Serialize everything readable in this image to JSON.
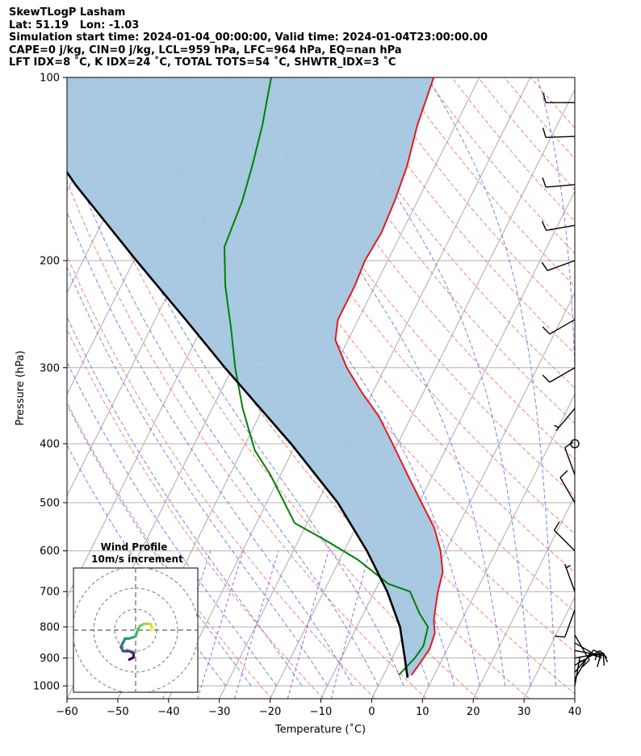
{
  "header": {
    "line1": "SkewTLogP Lasham",
    "line2": "Lat: 51.19   Lon: -1.03",
    "line3": "Simulation start time: 2024-01-04_00:00:00, Valid time: 2024-01-04T23:00:00.00",
    "line4": "CAPE=0 j/kg, CIN=0 j/kg, LCL=959 hPa, LFC=964 hPa, EQ=nan hPa",
    "line5": "LFT IDX=8 ˚C, K IDX=24 ˚C, TOTAL TOTS=54 ˚C, SHWTR_IDX=3 ˚C"
  },
  "chart_data": {
    "type": "skewt-logp",
    "xlabel": "Temperature (˚C)",
    "ylabel": "Pressure (hPa)",
    "xlim": [
      -60,
      40
    ],
    "ylim": [
      1050,
      100
    ],
    "y_log": true,
    "x_ticks": [
      "−60",
      "−50",
      "−40",
      "−30",
      "−20",
      "−10",
      "0",
      "10",
      "20",
      "30",
      "40"
    ],
    "x_tick_values": [
      -60,
      -50,
      -40,
      -30,
      -20,
      -10,
      0,
      10,
      20,
      30,
      40
    ],
    "y_ticks": [
      "100",
      "200",
      "300",
      "400",
      "500",
      "600",
      "700",
      "800",
      "900",
      "1000"
    ],
    "y_tick_values": [
      100,
      200,
      300,
      400,
      500,
      600,
      700,
      800,
      900,
      1000
    ],
    "grid": true,
    "colors": {
      "temperature": "#e31a1c",
      "dewpoint": "#008000",
      "parcel": "#000000",
      "cape_fill": "#a3c6df",
      "dry_adiabat": "#f06b6b",
      "moist_adiabat": "#5a6df0",
      "isotherm": "#aaaaaa",
      "mixing_ratio": "#9b51c9",
      "barb": "#000000"
    },
    "temperature": [
      {
        "p": 960,
        "t": 5.5
      },
      {
        "p": 920,
        "t": 6.0
      },
      {
        "p": 870,
        "t": 6.5
      },
      {
        "p": 820,
        "t": 6.0
      },
      {
        "p": 780,
        "t": 4.5
      },
      {
        "p": 740,
        "t": 3.5
      },
      {
        "p": 700,
        "t": 2.5
      },
      {
        "p": 650,
        "t": 1.5
      },
      {
        "p": 600,
        "t": -1.0
      },
      {
        "p": 550,
        "t": -4.5
      },
      {
        "p": 500,
        "t": -9.5
      },
      {
        "p": 450,
        "t": -15.0
      },
      {
        "p": 400,
        "t": -21.0
      },
      {
        "p": 360,
        "t": -26.5
      },
      {
        "p": 330,
        "t": -32.0
      },
      {
        "p": 300,
        "t": -37.5
      },
      {
        "p": 270,
        "t": -42.5
      },
      {
        "p": 250,
        "t": -44.0
      },
      {
        "p": 220,
        "t": -44.0
      },
      {
        "p": 200,
        "t": -44.5
      },
      {
        "p": 180,
        "t": -44.0
      },
      {
        "p": 160,
        "t": -44.5
      },
      {
        "p": 140,
        "t": -45.5
      },
      {
        "p": 120,
        "t": -47.5
      },
      {
        "p": 100,
        "t": -49.0
      }
    ],
    "dewpoint": [
      {
        "p": 960,
        "t": 3.0
      },
      {
        "p": 900,
        "t": 4.5
      },
      {
        "p": 860,
        "t": 5.0
      },
      {
        "p": 800,
        "t": 4.0
      },
      {
        "p": 760,
        "t": 1.0
      },
      {
        "p": 700,
        "t": -3.0
      },
      {
        "p": 680,
        "t": -8.0
      },
      {
        "p": 620,
        "t": -16.5
      },
      {
        "p": 580,
        "t": -24.0
      },
      {
        "p": 540,
        "t": -32.5
      },
      {
        "p": 500,
        "t": -36.5
      },
      {
        "p": 450,
        "t": -42.0
      },
      {
        "p": 410,
        "t": -47.5
      },
      {
        "p": 350,
        "t": -54.0
      },
      {
        "p": 300,
        "t": -59.5
      },
      {
        "p": 260,
        "t": -64.0
      },
      {
        "p": 220,
        "t": -69.5
      },
      {
        "p": 190,
        "t": -73.5
      },
      {
        "p": 175,
        "t": -74.0
      },
      {
        "p": 160,
        "t": -74.5
      },
      {
        "p": 140,
        "t": -76.0
      },
      {
        "p": 120,
        "t": -78.0
      },
      {
        "p": 100,
        "t": -81.0
      }
    ],
    "parcel": [
      {
        "p": 970,
        "t": 5.0
      },
      {
        "p": 900,
        "t": 2.5
      },
      {
        "p": 800,
        "t": -1.5
      },
      {
        "p": 700,
        "t": -7.5
      },
      {
        "p": 600,
        "t": -15.5
      },
      {
        "p": 500,
        "t": -26.0
      },
      {
        "p": 400,
        "t": -41.0
      },
      {
        "p": 300,
        "t": -61.5
      },
      {
        "p": 250,
        "t": -74.0
      },
      {
        "p": 200,
        "t": -89.5
      },
      {
        "p": 150,
        "t": -109.0
      },
      {
        "p": 100,
        "t": -134.0
      }
    ],
    "wind_barbs": [
      {
        "p": 1000,
        "dir": 10,
        "speed_kt": 5
      },
      {
        "p": 975,
        "dir": 30,
        "speed_kt": 10
      },
      {
        "p": 950,
        "dir": 40,
        "speed_kt": 10
      },
      {
        "p": 925,
        "dir": 60,
        "speed_kt": 10
      },
      {
        "p": 900,
        "dir": 80,
        "speed_kt": 15
      },
      {
        "p": 875,
        "dir": 100,
        "speed_kt": 15
      },
      {
        "p": 850,
        "dir": 120,
        "speed_kt": 15
      },
      {
        "p": 825,
        "dir": 150,
        "speed_kt": 10
      },
      {
        "p": 750,
        "dir": 200,
        "speed_kt": 10
      },
      {
        "p": 700,
        "dir": 340,
        "speed_kt": 5
      },
      {
        "p": 600,
        "dir": 315,
        "speed_kt": 10
      },
      {
        "p": 500,
        "dir": 330,
        "speed_kt": 10
      },
      {
        "p": 450,
        "dir": 340,
        "speed_kt": 10
      },
      {
        "p": 400,
        "dir": 0,
        "speed_kt": 0
      },
      {
        "p": 350,
        "dir": 220,
        "speed_kt": 5
      },
      {
        "p": 300,
        "dir": 240,
        "speed_kt": 10
      },
      {
        "p": 250,
        "dir": 240,
        "speed_kt": 10
      },
      {
        "p": 200,
        "dir": 250,
        "speed_kt": 10
      },
      {
        "p": 175,
        "dir": 260,
        "speed_kt": 10
      },
      {
        "p": 150,
        "dir": 265,
        "speed_kt": 10
      },
      {
        "p": 125,
        "dir": 268,
        "speed_kt": 10
      },
      {
        "p": 110,
        "dir": 270,
        "speed_kt": 10
      }
    ],
    "hodograph": {
      "title": "Wind Profile",
      "subtitle": "10m/s increment",
      "rings_ms": [
        10,
        20,
        30
      ],
      "uv_ms": [
        {
          "u": -3,
          "v": -14
        },
        {
          "u": -1,
          "v": -13
        },
        {
          "u": -1,
          "v": -11
        },
        {
          "u": -3,
          "v": -10
        },
        {
          "u": -6,
          "v": -10
        },
        {
          "u": -7,
          "v": -8
        },
        {
          "u": -6,
          "v": -6
        },
        {
          "u": -5,
          "v": -4
        },
        {
          "u": -3,
          "v": -4
        },
        {
          "u": 0,
          "v": -3
        },
        {
          "u": 1,
          "v": 0
        },
        {
          "u": 2,
          "v": 2
        },
        {
          "u": 4,
          "v": 3
        },
        {
          "u": 7,
          "v": 3
        },
        {
          "u": 8,
          "v": 1
        },
        {
          "u": 7,
          "v": 0
        }
      ]
    }
  }
}
